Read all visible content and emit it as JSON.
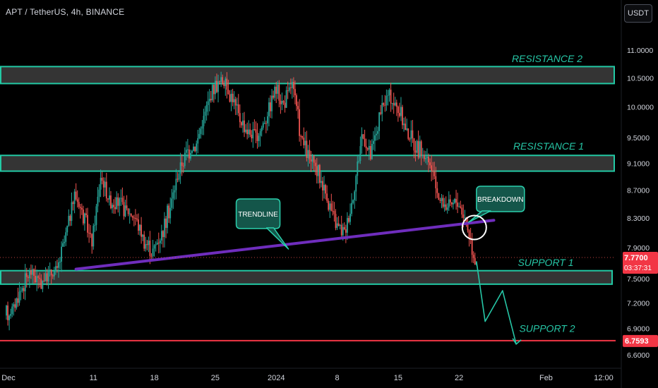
{
  "title": "APT / TetherUS, 4h, BINANCE",
  "currency": "USDT",
  "colors": {
    "bull": "#26a69a",
    "bear": "#ef5350",
    "zone_border": "#22c9a4",
    "zone_fill": "#3a3a3a",
    "trendline": "#6f2dbd",
    "support2_line": "#f23645",
    "annotation_text": "#26c6a6"
  },
  "chart_data": {
    "type": "candlestick",
    "y_axis": {
      "ticks": [
        "11.0000",
        "10.5000",
        "10.0000",
        "9.5000",
        "9.1000",
        "8.7000",
        "8.3000",
        "7.9000",
        "7.5000",
        "7.2000",
        "6.9000",
        "6.6000"
      ],
      "scale": "log",
      "ylim": [
        6.55,
        11.25
      ]
    },
    "x_axis": {
      "ticks": [
        "Dec",
        "11",
        "18",
        "25",
        "2024",
        "8",
        "15",
        "22",
        "Feb",
        "12:00"
      ]
    },
    "price_path": [
      [
        "Dec 1",
        7.05
      ],
      [
        "Dec 2",
        7.15
      ],
      [
        "Dec 3",
        7.4
      ],
      [
        "Dec 4",
        7.6
      ],
      [
        "Dec 5",
        7.45
      ],
      [
        "Dec 6",
        7.55
      ],
      [
        "Dec 7",
        7.6
      ],
      [
        "Dec 8",
        8.05
      ],
      [
        "Dec 9",
        8.65
      ],
      [
        "Dec 10",
        8.35
      ],
      [
        "Dec 11",
        7.95
      ],
      [
        "Dec 12",
        8.9
      ],
      [
        "Dec 13",
        8.55
      ],
      [
        "Dec 14",
        8.5
      ],
      [
        "Dec 15",
        8.4
      ],
      [
        "Dec 16",
        8.3
      ],
      [
        "Dec 17",
        8.0
      ],
      [
        "Dec 18",
        7.85
      ],
      [
        "Dec 19",
        8.1
      ],
      [
        "Dec 20",
        8.45
      ],
      [
        "Dec 21",
        9.0
      ],
      [
        "Dec 22",
        9.3
      ],
      [
        "Dec 23",
        9.4
      ],
      [
        "Dec 24",
        9.9
      ],
      [
        "Dec 25",
        10.35
      ],
      [
        "Dec 26",
        10.45
      ],
      [
        "Dec 27",
        10.2
      ],
      [
        "Dec 28",
        9.8
      ],
      [
        "Dec 29",
        9.6
      ],
      [
        "Dec 30",
        9.5
      ],
      [
        "Dec 31",
        9.85
      ],
      [
        "Jan 1",
        10.3
      ],
      [
        "Jan 2",
        10.05
      ],
      [
        "Jan 3",
        10.4
      ],
      [
        "Jan 4",
        9.5
      ],
      [
        "Jan 5",
        9.15
      ],
      [
        "Jan 6",
        8.95
      ],
      [
        "Jan 7",
        8.6
      ],
      [
        "Jan 8",
        8.2
      ],
      [
        "Jan 9",
        8.1
      ],
      [
        "Jan 10",
        8.6
      ],
      [
        "Jan 11",
        9.55
      ],
      [
        "Jan 12",
        9.2
      ],
      [
        "Jan 13",
        9.8
      ],
      [
        "Jan 14",
        10.2
      ],
      [
        "Jan 15",
        10.0
      ],
      [
        "Jan 16",
        9.65
      ],
      [
        "Jan 17",
        9.4
      ],
      [
        "Jan 18",
        9.25
      ],
      [
        "Jan 19",
        9.0
      ],
      [
        "Jan 20",
        8.55
      ],
      [
        "Jan 21",
        8.45
      ],
      [
        "Jan 22",
        8.55
      ],
      [
        "Jan 23",
        8.25
      ],
      [
        "Jan 24",
        7.75
      ]
    ],
    "zones": [
      {
        "name": "RESISTANCE 2",
        "low": 10.4,
        "high": 10.7
      },
      {
        "name": "RESISTANCE 1",
        "low": 8.98,
        "high": 9.22
      },
      {
        "name": "SUPPORT 1",
        "low": 7.43,
        "high": 7.6
      }
    ],
    "support2": {
      "name": "SUPPORT 2",
      "value": 6.7593,
      "label": "6.7593"
    },
    "trendline": {
      "start": [
        "Dec 9",
        7.62
      ],
      "end": [
        "Jan 26",
        8.27
      ]
    },
    "annotations": [
      {
        "text": "TRENDLINE",
        "at": [
          "Dec 30",
          8.12
        ]
      },
      {
        "text": "BREAKDOWN",
        "at": [
          "Jan 24",
          8.42
        ]
      }
    ],
    "projection": [
      [
        "Jan 24",
        7.72
      ],
      [
        "Jan 25",
        6.98
      ],
      [
        "Jan 27",
        7.35
      ],
      [
        "Jan 28",
        6.72
      ]
    ],
    "last_price": {
      "value": "7.7700",
      "countdown": "03:37:31"
    }
  }
}
